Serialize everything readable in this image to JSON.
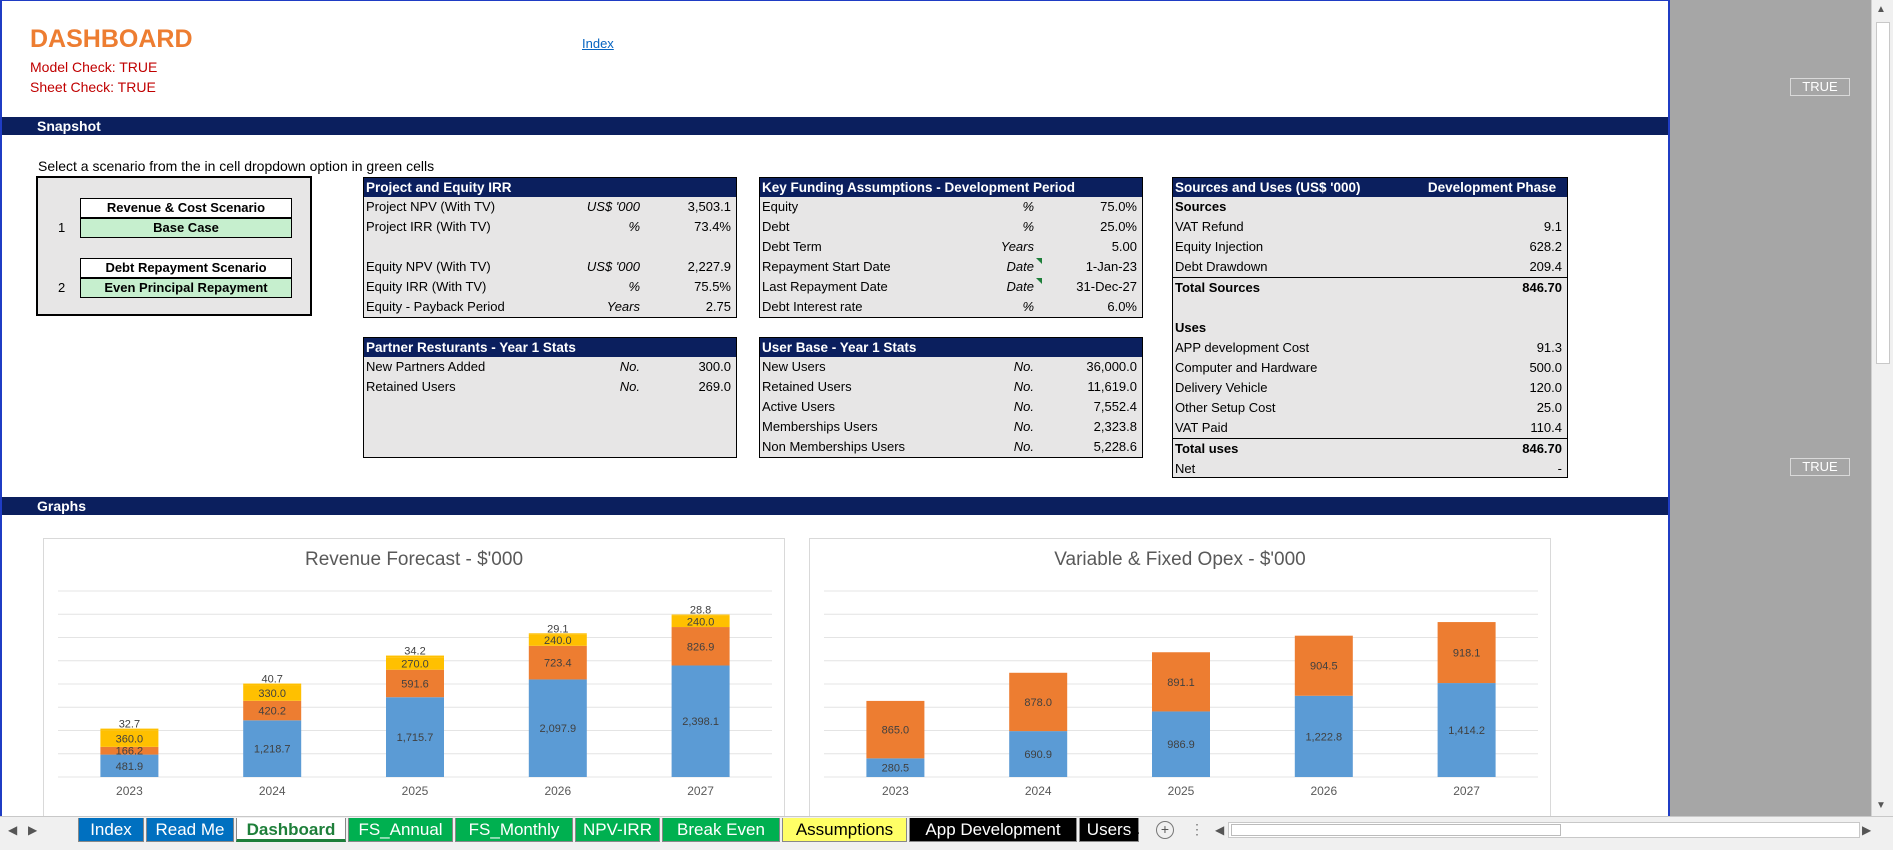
{
  "header": {
    "title": "DASHBOARD",
    "model_check": "Model Check: TRUE",
    "sheet_check": "Sheet Check: TRUE",
    "index_link": "Index",
    "true_flag_1": "TRUE",
    "true_flag_2": "TRUE"
  },
  "sections": {
    "snapshot": "Snapshot",
    "graphs": "Graphs"
  },
  "hint": "Select a scenario from the in cell dropdown option in green cells",
  "scenarios": {
    "revenue_label": "Revenue & Cost Scenario",
    "revenue_num": "1",
    "revenue_value": "Base Case",
    "debt_label": "Debt Repayment Scenario",
    "debt_num": "2",
    "debt_value": "Even Principal Repayment"
  },
  "irr": {
    "title": "Project and Equity IRR",
    "rows": [
      {
        "label": "Project NPV (With TV)",
        "unit": "US$ '000",
        "value": "3,503.1"
      },
      {
        "label": "Project IRR  (With TV)",
        "unit": "%",
        "value": "73.4%"
      },
      {
        "label": "",
        "unit": "",
        "value": ""
      },
      {
        "label": "Equity NPV (With TV)",
        "unit": "US$ '000",
        "value": "2,227.9"
      },
      {
        "label": "Equity IRR  (With TV)",
        "unit": "%",
        "value": "75.5%"
      },
      {
        "label": "Equity - Payback Period",
        "unit": "Years",
        "value": "2.75"
      }
    ]
  },
  "funding": {
    "title": "Key Funding Assumptions - Development Period",
    "rows": [
      {
        "label": "Equity",
        "unit": "%",
        "value": "75.0%"
      },
      {
        "label": "Debt",
        "unit": "%",
        "value": "25.0%"
      },
      {
        "label": "Debt Term",
        "unit": "Years",
        "value": "5.00"
      },
      {
        "label": "Repayment Start Date",
        "unit": "Date",
        "value": "1-Jan-23"
      },
      {
        "label": "Last Repayment Date",
        "unit": "Date",
        "value": "31-Dec-27"
      },
      {
        "label": "Debt Interest rate",
        "unit": "%",
        "value": "6.0%"
      }
    ]
  },
  "partners": {
    "title": "Partner Resturants - Year 1 Stats",
    "rows": [
      {
        "label": "New Partners Added",
        "unit": "No.",
        "value": "300.0"
      },
      {
        "label": "Retained Users",
        "unit": "No.",
        "value": "269.0"
      }
    ]
  },
  "userbase": {
    "title": "User Base - Year 1 Stats",
    "rows": [
      {
        "label": "New Users",
        "unit": "No.",
        "value": "36,000.0"
      },
      {
        "label": "Retained Users",
        "unit": "No.",
        "value": "11,619.0"
      },
      {
        "label": "Active Users",
        "unit": "No.",
        "value": "7,552.4"
      },
      {
        "label": "Memberships Users",
        "unit": "No.",
        "value": "2,323.8"
      },
      {
        "label": "Non Memberships Users",
        "unit": "No.",
        "value": "5,228.6"
      }
    ]
  },
  "sources_uses": {
    "title": "Sources and Uses (US$ '000)",
    "col_title": "Development Phase",
    "sources_head": "Sources",
    "sources": [
      {
        "label": "VAT Refund",
        "value": "9.1"
      },
      {
        "label": "Equity Injection",
        "value": "628.2"
      },
      {
        "label": "Debt Drawdown",
        "value": "209.4"
      }
    ],
    "total_sources": {
      "label": "Total Sources",
      "value": "846.70"
    },
    "uses_head": "Uses",
    "uses": [
      {
        "label": "APP development Cost",
        "value": "91.3"
      },
      {
        "label": "Computer and Hardware",
        "value": "500.0"
      },
      {
        "label": "Delivery Vehicle",
        "value": "120.0"
      },
      {
        "label": "Other Setup Cost",
        "value": "25.0"
      },
      {
        "label": "VAT Paid",
        "value": "110.4"
      }
    ],
    "total_uses": {
      "label": "Total uses",
      "value": "846.70"
    },
    "net": {
      "label": "Net",
      "value": "-"
    }
  },
  "colors": {
    "blue": "#5b9bd5",
    "orange": "#ed7d31",
    "yellow": "#ffc000",
    "navy": "#0b1f5e"
  },
  "chart_data": [
    {
      "type": "bar",
      "title": "Revenue Forecast - $'000",
      "stacked": true,
      "categories": [
        "2023",
        "2024",
        "2025",
        "2026",
        "2027"
      ],
      "ylim": [
        0,
        4000
      ],
      "series": [
        {
          "values": [
            481.9,
            1218.7,
            1715.7,
            2097.9,
            2398.1
          ],
          "color": "#5b9bd5"
        },
        {
          "values": [
            166.2,
            420.2,
            591.6,
            723.4,
            826.9
          ],
          "color": "#ed7d31"
        },
        {
          "values": [
            360.0,
            330.0,
            270.0,
            240.0,
            240.0
          ],
          "color": "#ffc000"
        },
        {
          "values": [
            32.7,
            40.7,
            34.2,
            29.1,
            28.8
          ],
          "color": "#ffc000"
        }
      ]
    },
    {
      "type": "bar",
      "title": "Variable & Fixed Opex - $'000",
      "stacked": true,
      "categories": [
        "2023",
        "2024",
        "2025",
        "2026",
        "2027"
      ],
      "ylim": [
        0,
        2800
      ],
      "series": [
        {
          "values": [
            280.5,
            690.9,
            986.9,
            1222.8,
            1414.2
          ],
          "color": "#5b9bd5"
        },
        {
          "values": [
            865.0,
            878.0,
            891.1,
            904.5,
            918.1
          ],
          "color": "#ed7d31"
        }
      ]
    }
  ],
  "tabs": [
    {
      "label": "Index",
      "bg": "#0070c0",
      "fg": "#ffffff"
    },
    {
      "label": "Read Me",
      "bg": "#0070c0",
      "fg": "#ffffff"
    },
    {
      "label": "Dashboard",
      "bg": "#ffffff",
      "fg": "#1e7f3a",
      "active": true
    },
    {
      "label": "FS_Annual",
      "bg": "#00b050",
      "fg": "#ffffff"
    },
    {
      "label": "FS_Monthly",
      "bg": "#00b050",
      "fg": "#ffffff"
    },
    {
      "label": "NPV-IRR",
      "bg": "#00b050",
      "fg": "#ffffff"
    },
    {
      "label": "Break Even",
      "bg": "#00b050",
      "fg": "#ffffff"
    },
    {
      "label": "Assumptions",
      "bg": "#ffff66",
      "fg": "#000000"
    },
    {
      "label": "App Development",
      "bg": "#000000",
      "fg": "#ffffff"
    },
    {
      "label": "Users",
      "bg": "#000000",
      "fg": "#ffffff"
    }
  ],
  "tab_more": "...",
  "add_sheet": "+"
}
